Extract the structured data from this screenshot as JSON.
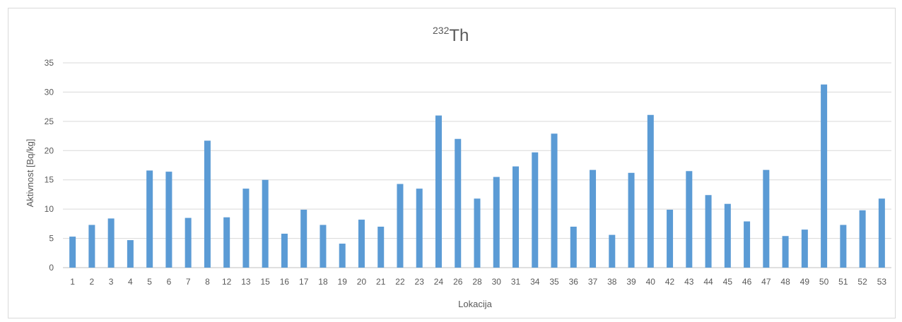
{
  "chart_data": {
    "type": "bar",
    "title": {
      "superscript": "232",
      "main": "Th"
    },
    "xlabel": "Lokacija",
    "ylabel": "Aktivnost [Bq/kg]",
    "ylim": [
      0,
      35
    ],
    "yticks": [
      0,
      5,
      10,
      15,
      20,
      25,
      30,
      35
    ],
    "grid": true,
    "legend": "none",
    "bar_color": "#5b9bd5",
    "categories": [
      "1",
      "2",
      "3",
      "4",
      "5",
      "6",
      "7",
      "8",
      "12",
      "13",
      "15",
      "16",
      "17",
      "18",
      "19",
      "20",
      "21",
      "22",
      "23",
      "24",
      "26",
      "28",
      "30",
      "31",
      "34",
      "35",
      "36",
      "37",
      "38",
      "39",
      "40",
      "42",
      "43",
      "44",
      "45",
      "46",
      "47",
      "48",
      "49",
      "50",
      "51",
      "52",
      "53"
    ],
    "values": [
      5.3,
      7.3,
      8.4,
      4.7,
      16.6,
      16.4,
      8.5,
      21.7,
      8.6,
      13.5,
      15.0,
      5.8,
      9.9,
      7.3,
      4.1,
      8.2,
      7.0,
      14.3,
      13.5,
      26.0,
      22.0,
      11.8,
      15.5,
      17.3,
      19.7,
      22.9,
      7.0,
      16.7,
      5.6,
      16.2,
      26.1,
      9.9,
      16.5,
      12.4,
      10.9,
      7.9,
      16.7,
      5.4,
      6.5,
      31.3,
      7.3,
      9.8,
      11.8
    ]
  }
}
